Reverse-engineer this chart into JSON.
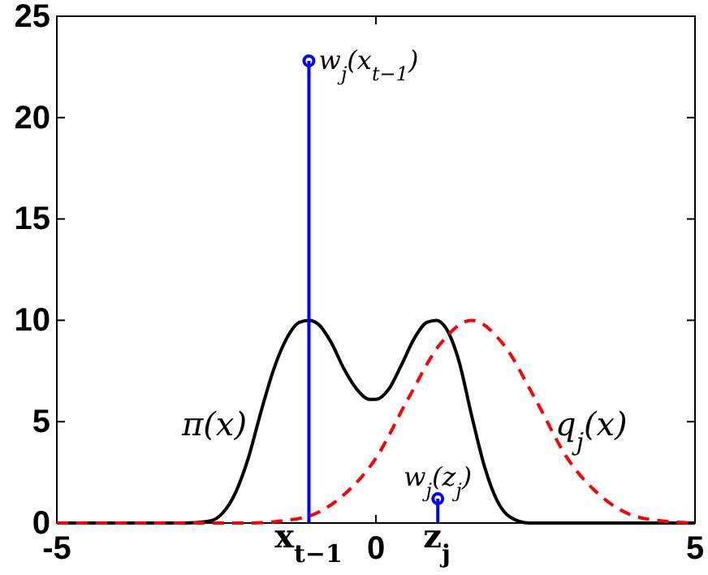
{
  "chart_data": {
    "type": "line",
    "xlim": [
      -5,
      5
    ],
    "ylim": [
      0,
      25
    ],
    "xticks": [
      -5,
      0,
      5
    ],
    "yticks": [
      0,
      5,
      10,
      15,
      20,
      25
    ],
    "grid": false,
    "series": [
      {
        "color": "#000000",
        "line_style": "solid",
        "x": [
          -5,
          -3,
          -2.6,
          -2.4,
          -2.2,
          -2,
          -1.8,
          -1.6,
          -1.4,
          -1.2,
          -1.05,
          -0.9,
          -0.7,
          -0.5,
          -0.3,
          -0.1,
          0,
          0.2,
          0.4,
          0.6,
          0.8,
          0.95,
          1.1,
          1.3,
          1.5,
          1.7,
          1.9,
          2.1,
          2.4,
          5
        ],
        "values": [
          0,
          0,
          0.1,
          0.5,
          1.5,
          3.2,
          5.5,
          7.6,
          9.1,
          9.9,
          10,
          9.8,
          8.9,
          7.6,
          6.6,
          6.1,
          6.1,
          6.6,
          7.8,
          9.1,
          9.9,
          10,
          9.6,
          8,
          5.3,
          2.8,
          1.1,
          0.3,
          0,
          0
        ]
      },
      {
        "color": "#ff0000",
        "line_style": "dashed",
        "x": [
          -5,
          -2,
          -1.5,
          -1,
          -0.5,
          0,
          0.5,
          1,
          1.5,
          2,
          2.5,
          3,
          3.5,
          4,
          4.5,
          5
        ],
        "values": [
          0,
          0,
          0.1,
          0.4,
          1.4,
          3.2,
          6.1,
          8.8,
          10,
          8.8,
          6.1,
          3.2,
          1.4,
          0.4,
          0.1,
          0
        ]
      },
      {
        "type": "lollipop",
        "color": "#0000ff",
        "marker": "circle",
        "x": [
          -1.05,
          0.97
        ],
        "values": [
          22.8,
          1.2
        ]
      }
    ],
    "annotations": [
      {
        "text": "w$_{j}$(x$_{t−1}$)",
        "x": -1.05,
        "y": 22.8
      },
      {
        "text": "w$_{j}$(z$_{j}$)",
        "x": 0.97,
        "y": 1.2
      },
      "π(x)",
      "q$_{j}$(x)",
      "x$_{t−1}$",
      "z$_{j}$"
    ]
  }
}
